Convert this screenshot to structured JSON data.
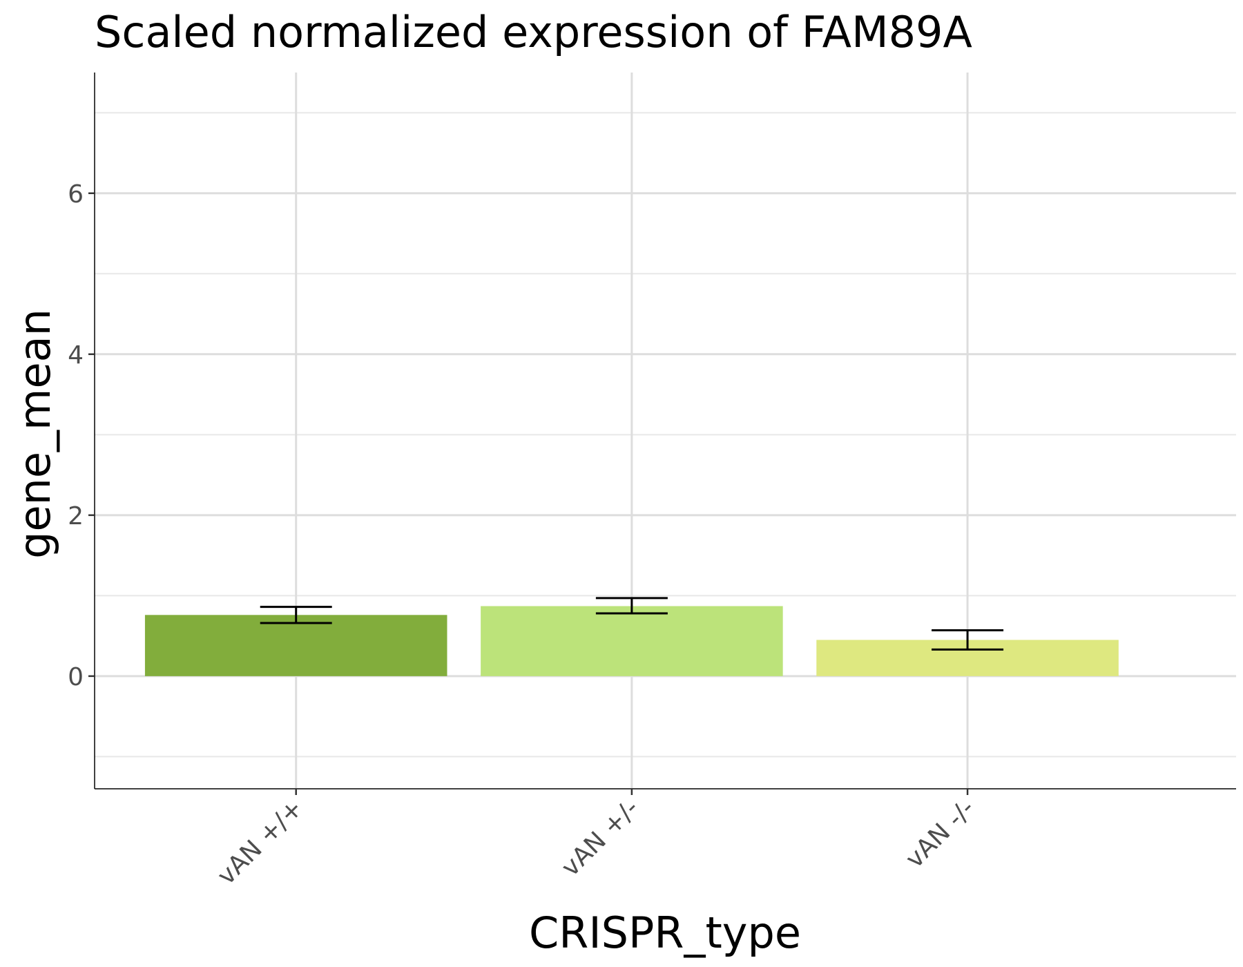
{
  "chart_data": {
    "type": "bar",
    "title": "Scaled normalized expression of FAM89A",
    "xlabel": "CRISPR_type",
    "ylabel": "gene_mean",
    "categories": [
      "vAN +/+",
      "vAN +/-",
      "vAN -/-"
    ],
    "values": [
      0.76,
      0.87,
      0.45
    ],
    "error_low": [
      0.66,
      0.78,
      0.33
    ],
    "error_high": [
      0.86,
      0.97,
      0.57
    ],
    "colors": [
      "#82ad3c",
      "#bce37a",
      "#dee880"
    ],
    "ylim": [
      -1.4,
      7.5
    ],
    "yticks": [
      0,
      2,
      4,
      6
    ],
    "grid": true,
    "x_tick_label_rotation": -45
  }
}
